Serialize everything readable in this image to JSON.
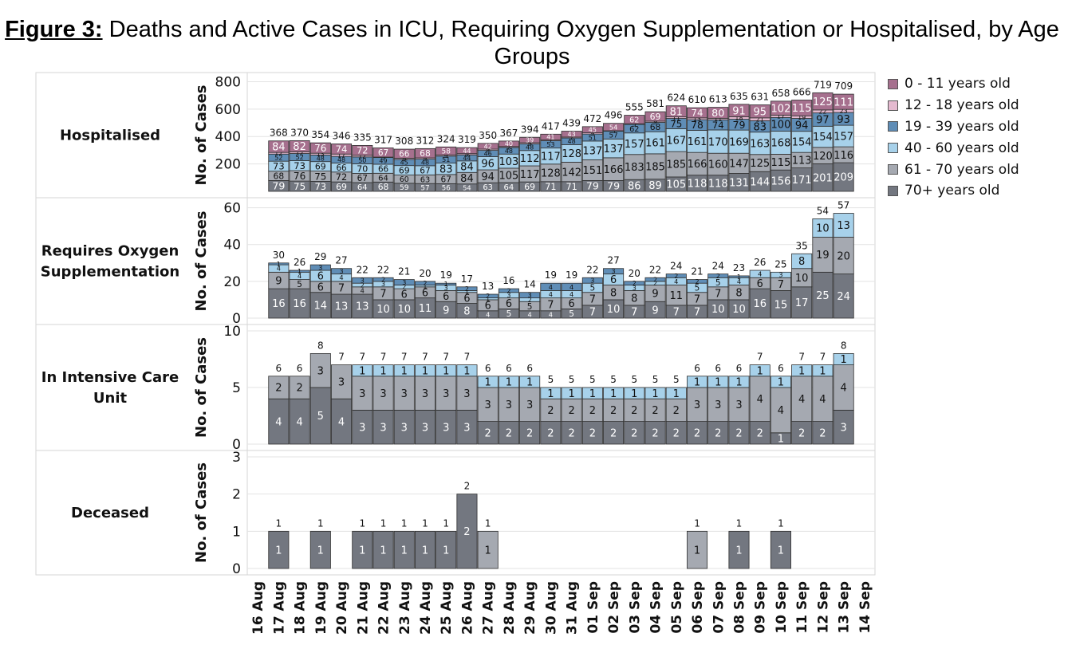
{
  "title": {
    "lead": "Figure 3:",
    "text": " Deaths and Active Cases in ICU, Requiring Oxygen Supplementation or Hospitalised, by Age Groups"
  },
  "colors": {
    "0 - 11 years old": "#a6708e",
    "12 - 18 years old": "#e4b9cf",
    "19 - 39 years old": "#5f8db6",
    "40 - 60 years old": "#a7d1ea",
    "61 - 70 years old": "#a5a9b1",
    "70+ years old": "#737780"
  },
  "chart_data": {
    "type": "bar",
    "stacked": true,
    "x_tick_labels": [
      "16 Aug",
      "17 Aug",
      "18 Aug",
      "19 Aug",
      "20 Aug",
      "21 Aug",
      "22 Aug",
      "23 Aug",
      "24 Aug",
      "25 Aug",
      "26 Aug",
      "27 Aug",
      "28 Aug",
      "29 Aug",
      "30 Aug",
      "31 Aug",
      "01 Sep",
      "02 Sep",
      "03 Sep",
      "04 Sep",
      "05 Sep",
      "06 Sep",
      "07 Sep",
      "08 Sep",
      "09 Sep",
      "10 Sep",
      "11 Sep",
      "12 Sep",
      "13 Sep",
      "14 Sep"
    ],
    "x_bars": [
      "17 Aug",
      "18 Aug",
      "19 Aug",
      "20 Aug",
      "21 Aug",
      "22 Aug",
      "23 Aug",
      "24 Aug",
      "25 Aug",
      "26 Aug",
      "27 Aug",
      "28 Aug",
      "29 Aug",
      "30 Aug",
      "31 Aug",
      "01 Sep",
      "02 Sep",
      "03 Sep",
      "04 Sep",
      "05 Sep",
      "06 Sep",
      "07 Sep",
      "08 Sep",
      "09 Sep",
      "10 Sep",
      "11 Sep",
      "12 Sep",
      "13 Sep"
    ],
    "legend": [
      "0 - 11 years old",
      "12 - 18 years old",
      "19 - 39 years old",
      "40 - 60 years old",
      "61 - 70 years old",
      "70+ years old"
    ],
    "legend_position": "right",
    "panels": [
      {
        "row_label": "Hospitalised",
        "ylabel": "No. of Cases",
        "ylim": [
          0,
          820
        ],
        "yticks": [
          200,
          400,
          600,
          800
        ],
        "totals": [
          368,
          370,
          354,
          346,
          335,
          317,
          308,
          312,
          324,
          319,
          350,
          367,
          394,
          417,
          439,
          472,
          496,
          555,
          581,
          624,
          610,
          613,
          635,
          631,
          658,
          666,
          719,
          709
        ],
        "series": [
          {
            "name": "70+ years old",
            "values": [
              79,
              75,
              73,
              69,
              64,
              68,
              59,
              57,
              56,
              54,
              63,
              64,
              69,
              71,
              71,
              79,
              79,
              86,
              89,
              105,
              118,
              118,
              131,
              144,
              156,
              171,
              201,
              209
            ]
          },
          {
            "name": "61 - 70 years old",
            "values": [
              68,
              76,
              75,
              72,
              67,
              64,
              60,
              63,
              67,
              84,
              94,
              105,
              117,
              128,
              142,
              151,
              166,
              183,
              185,
              185,
              166,
              160,
              147,
              125,
              115,
              113,
              120,
              116
            ]
          },
          {
            "name": "40 - 60 years old",
            "values": [
              73,
              73,
              69,
              66,
              70,
              66,
              69,
              67,
              83,
              84,
              96,
              103,
              112,
              117,
              128,
              137,
              137,
              157,
              161,
              167,
              161,
              170,
              169,
              163,
              168,
              154,
              154,
              157
            ]
          },
          {
            "name": "19 - 39 years old",
            "values": [
              52,
              52,
              48,
              48,
              50,
              49,
              45,
              48,
              51,
              44,
              46,
              48,
              48,
              53,
              48,
              51,
              57,
              62,
              68,
              75,
              78,
              74,
              79,
              83,
              100,
              94,
              97,
              93
            ]
          },
          {
            "name": "12 - 18 years old",
            "values": [
              12,
              12,
              13,
              17,
              12,
              3,
              9,
              9,
              9,
              9,
              9,
              7,
              9,
              7,
              7,
              9,
              3,
              5,
              9,
              11,
              13,
              11,
              18,
              21,
              17,
              19,
              22,
              23
            ]
          },
          {
            "name": "0 - 11 years old",
            "values": [
              84,
              82,
              76,
              74,
              72,
              67,
              66,
              68,
              58,
              44,
              42,
              40,
              39,
              41,
              43,
              45,
              54,
              62,
              69,
              81,
              74,
              80,
              91,
              95,
              102,
              115,
              125,
              111
            ]
          }
        ]
      },
      {
        "row_label": "Requires Oxygen Supplementation",
        "ylabel": "No. of Cases",
        "ylim": [
          0,
          62
        ],
        "yticks": [
          0,
          20,
          40,
          60
        ],
        "totals": [
          30,
          26,
          29,
          27,
          22,
          22,
          21,
          20,
          19,
          17,
          13,
          16,
          14,
          19,
          19,
          22,
          27,
          20,
          22,
          24,
          21,
          24,
          23,
          26,
          25,
          35,
          54,
          57
        ],
        "series": [
          {
            "name": "70+ years old",
            "values": [
              16,
              16,
              14,
              13,
              13,
              10,
              10,
              11,
              9,
              8,
              4,
              5,
              4,
              4,
              5,
              7,
              10,
              7,
              9,
              7,
              7,
              10,
              10,
              16,
              15,
              17,
              25,
              24
            ]
          },
          {
            "name": "61 - 70 years old",
            "values": [
              9,
              5,
              6,
              7,
              4,
              7,
              6,
              6,
              6,
              6,
              6,
              6,
              5,
              7,
              6,
              7,
              8,
              8,
              9,
              11,
              7,
              7,
              8,
              6,
              7,
              10,
              19,
              20
            ]
          },
          {
            "name": "40 - 60 years old",
            "values": [
              4,
              4,
              6,
              4,
              2,
              3,
              2,
              1,
              3,
              1,
              1,
              3,
              2,
              4,
              4,
              5,
              6,
              3,
              2,
              4,
              5,
              5,
              4,
              4,
              3,
              8,
              10,
              13
            ]
          },
          {
            "name": "19 - 39 years old",
            "values": [
              1,
              1,
              3,
              3,
              3,
              2,
              3,
              2,
              1,
              2,
              2,
              2,
              3,
              4,
              4,
              3,
              3,
              2,
              2,
              2,
              2,
              2,
              1,
              0,
              0,
              0,
              0,
              0
            ]
          }
        ]
      },
      {
        "row_label": "In Intensive Care Unit",
        "ylabel": "No. of Cases",
        "ylim": [
          0,
          10
        ],
        "yticks": [
          0,
          5,
          10
        ],
        "totals": [
          6,
          6,
          8,
          7,
          7,
          7,
          7,
          7,
          7,
          7,
          6,
          6,
          6,
          5,
          5,
          5,
          5,
          5,
          5,
          5,
          6,
          6,
          6,
          7,
          6,
          7,
          7,
          8
        ],
        "series": [
          {
            "name": "70+ years old",
            "values": [
              4,
              4,
              5,
              4,
              3,
              3,
              3,
              3,
              3,
              3,
              2,
              2,
              2,
              2,
              2,
              2,
              2,
              2,
              2,
              2,
              2,
              2,
              2,
              2,
              1,
              2,
              2,
              3
            ]
          },
          {
            "name": "61 - 70 years old",
            "values": [
              2,
              2,
              3,
              3,
              3,
              3,
              3,
              3,
              3,
              3,
              3,
              3,
              3,
              2,
              2,
              2,
              2,
              2,
              2,
              2,
              3,
              3,
              3,
              4,
              4,
              4,
              4,
              4
            ]
          },
          {
            "name": "40 - 60 years old",
            "values": [
              0,
              0,
              0,
              0,
              1,
              1,
              1,
              1,
              1,
              1,
              1,
              1,
              1,
              1,
              1,
              1,
              1,
              1,
              1,
              1,
              1,
              1,
              1,
              1,
              1,
              1,
              1,
              1
            ]
          }
        ]
      },
      {
        "row_label": "Deceased",
        "ylabel": "No. of Cases",
        "ylim": [
          0,
          3
        ],
        "yticks": [
          0,
          1,
          2,
          3
        ],
        "totals": [
          1,
          null,
          1,
          null,
          1,
          1,
          1,
          1,
          1,
          2,
          1,
          null,
          null,
          null,
          null,
          null,
          null,
          null,
          null,
          null,
          1,
          null,
          1,
          null,
          1,
          null,
          null,
          null
        ],
        "series": [
          {
            "name": "70+ years old",
            "values": [
              1,
              0,
              1,
              0,
              1,
              1,
              1,
              1,
              1,
              2,
              0,
              0,
              0,
              0,
              0,
              0,
              0,
              0,
              0,
              0,
              0,
              0,
              1,
              0,
              1,
              0,
              0,
              0
            ]
          },
          {
            "name": "61 - 70 years old",
            "values": [
              0,
              0,
              0,
              0,
              0,
              0,
              0,
              0,
              0,
              0,
              1,
              0,
              0,
              0,
              0,
              0,
              0,
              0,
              0,
              0,
              1,
              0,
              0,
              0,
              0,
              0,
              0,
              0
            ]
          }
        ]
      }
    ]
  }
}
